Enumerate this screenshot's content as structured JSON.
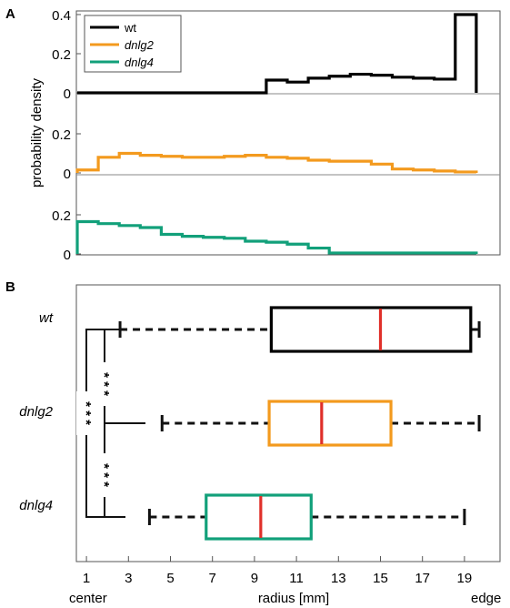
{
  "chart_data": [
    {
      "type": "histogram",
      "panel_label": "A",
      "ylabel": "probability density",
      "bin_edges": [
        1,
        2,
        3,
        4,
        5,
        6,
        7,
        8,
        9,
        10,
        11,
        12,
        13,
        14,
        15,
        16,
        17,
        18,
        19,
        20
      ],
      "legend_position": "top-left",
      "series": [
        {
          "name": "wt",
          "color": "#000000",
          "densities": [
            0,
            0,
            0,
            0,
            0,
            0,
            0,
            0,
            0,
            0.065,
            0.055,
            0.075,
            0.085,
            0.095,
            0.09,
            0.08,
            0.075,
            0.07,
            0.4
          ],
          "yticks": [
            "0",
            "0.2",
            "0.4"
          ],
          "ylim": [
            0,
            0.4
          ]
        },
        {
          "name": "dnlg2",
          "color": "#f39a1e",
          "densities": [
            0.015,
            0.08,
            0.1,
            0.09,
            0.085,
            0.08,
            0.08,
            0.085,
            0.09,
            0.08,
            0.075,
            0.065,
            0.06,
            0.06,
            0.045,
            0.02,
            0.015,
            0.01,
            0.005
          ],
          "yticks": [
            "0",
            "0.2"
          ],
          "ylim": [
            0,
            0.3
          ]
        },
        {
          "name": "dnlg4",
          "color": "#12a07a",
          "densities": [
            0.165,
            0.155,
            0.145,
            0.135,
            0.1,
            0.09,
            0.085,
            0.08,
            0.065,
            0.06,
            0.05,
            0.03,
            0.005,
            0.005,
            0.005,
            0.005,
            0.005,
            0.005,
            0.005
          ],
          "yticks": [
            "0",
            "0.2"
          ],
          "ylim": [
            0,
            0.3
          ]
        }
      ]
    },
    {
      "type": "boxplot",
      "panel_label": "B",
      "xlabel": "radius [mm]",
      "xlim": [
        0,
        21
      ],
      "xticks": [
        "1",
        "3",
        "5",
        "7",
        "9",
        "11",
        "13",
        "15",
        "17",
        "19"
      ],
      "x_left_label": "center",
      "x_right_label": "edge",
      "significance_mark": "* * *",
      "series": [
        {
          "name": "wt",
          "color": "#000000",
          "whisker_low": 2.6,
          "q1": 9.8,
          "median": 15.0,
          "q3": 19.3,
          "whisker_high": 19.7
        },
        {
          "name": "dnlg2",
          "color": "#f39a1e",
          "whisker_low": 4.6,
          "q1": 9.7,
          "median": 12.2,
          "q3": 15.5,
          "whisker_high": 19.7
        },
        {
          "name": "dnlg4",
          "color": "#12a07a",
          "whisker_low": 4.0,
          "q1": 6.7,
          "median": 9.3,
          "q3": 11.7,
          "whisker_high": 19.0
        }
      ],
      "median_color": "#e0302a"
    }
  ]
}
